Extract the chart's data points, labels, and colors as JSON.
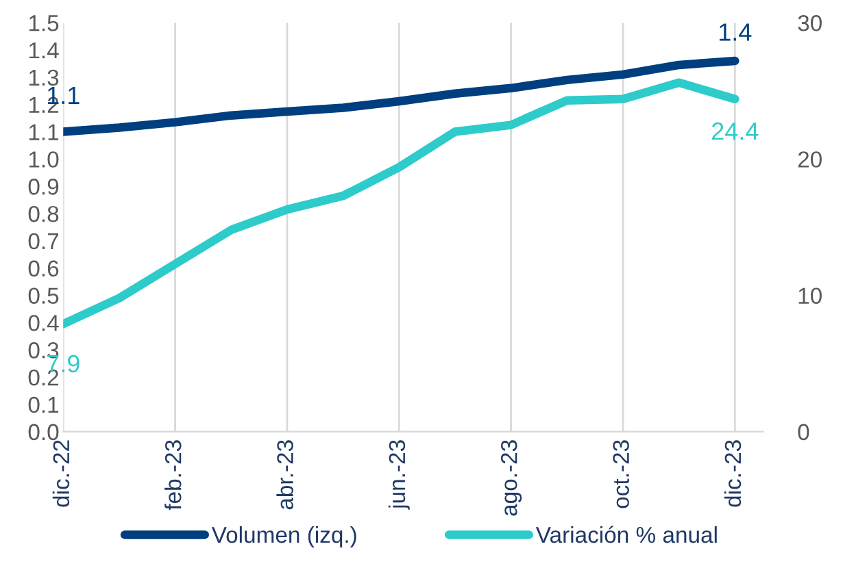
{
  "chart_data": {
    "type": "line",
    "categories": [
      "dic.-22",
      null,
      "feb.-23",
      null,
      "abr.-23",
      null,
      "jun.-23",
      null,
      "ago.-23",
      null,
      "oct.-23",
      null,
      "dic.-23"
    ],
    "series": [
      {
        "name": "Volumen (izq.)",
        "color": "#003f7f",
        "values": [
          1.1,
          1.115,
          1.135,
          1.16,
          1.174,
          1.188,
          1.212,
          1.24,
          1.26,
          1.29,
          1.31,
          1.345,
          1.36
        ],
        "value_labels": [
          "1.1",
          null,
          null,
          null,
          null,
          null,
          null,
          null,
          null,
          null,
          null,
          null,
          "1.4"
        ]
      },
      {
        "name": "Variación % anual",
        "color": "#2ecbcb",
        "axis": "y2",
        "values": [
          7.9,
          9.8,
          12.3,
          14.8,
          16.3,
          17.3,
          19.4,
          22.0,
          22.5,
          24.3,
          24.4,
          25.6,
          24.4
        ],
        "value_labels": [
          "7.9",
          null,
          null,
          null,
          null,
          null,
          null,
          null,
          null,
          null,
          null,
          null,
          "24.4"
        ]
      }
    ],
    "ylim": [
      0,
      1.5
    ],
    "yticks": [
      {
        "value": 0,
        "label": "0.0"
      },
      0.1,
      0.2,
      0.3,
      0.4,
      0.5,
      0.6,
      0.7,
      0.8,
      0.9,
      {
        "value": 1,
        "label": "1.0"
      },
      1.1,
      1.2,
      1.3,
      1.4,
      1.5
    ],
    "y2lim": [
      0,
      30
    ],
    "y2ticks": [
      0,
      10,
      20,
      30
    ],
    "grid": "x",
    "legend": "bottom",
    "marker": "none",
    "line_style": "solid"
  }
}
